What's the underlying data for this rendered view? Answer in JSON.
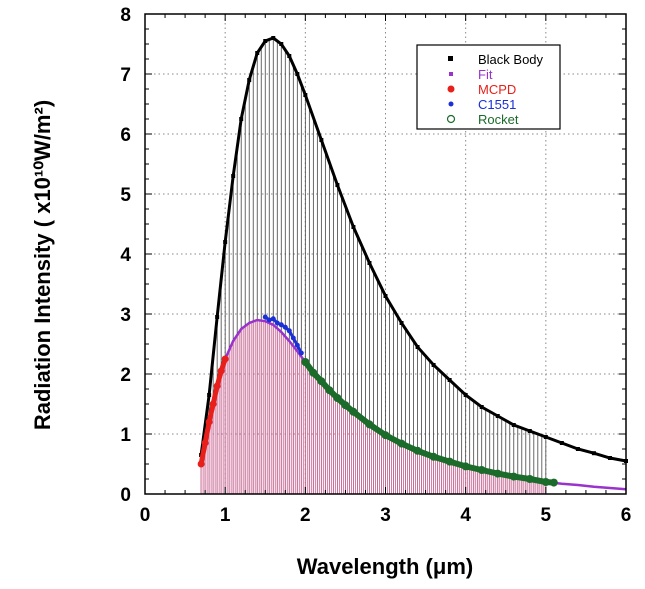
{
  "chart_data": {
    "type": "line",
    "title": "",
    "xlabel": "Wavelength (μm)",
    "ylabel": "Radiation Intensity ( x10¹⁰W/m²)",
    "xlim": [
      0,
      6
    ],
    "ylim": [
      0,
      8
    ],
    "x_ticks": [
      "0",
      "1",
      "2",
      "3",
      "4",
      "5",
      "6"
    ],
    "y_ticks": [
      "0",
      "1",
      "2",
      "3",
      "4",
      "5",
      "6",
      "7",
      "8"
    ],
    "grid": true,
    "legend_position": "top-right",
    "series": [
      {
        "name": "Black Body",
        "marker": "square",
        "color": "#000000",
        "x": [
          0.7,
          0.8,
          0.9,
          1.0,
          1.1,
          1.2,
          1.3,
          1.4,
          1.5,
          1.6,
          1.7,
          1.8,
          1.9,
          2.0,
          2.2,
          2.4,
          2.6,
          2.8,
          3.0,
          3.2,
          3.4,
          3.6,
          3.8,
          4.0,
          4.2,
          4.4,
          4.6,
          4.8,
          5.0,
          5.2,
          5.4,
          5.6,
          5.8,
          6.0
        ],
        "y": [
          0.65,
          1.65,
          2.95,
          4.2,
          5.3,
          6.25,
          6.9,
          7.35,
          7.55,
          7.6,
          7.5,
          7.3,
          7.0,
          6.65,
          5.9,
          5.15,
          4.45,
          3.85,
          3.3,
          2.85,
          2.45,
          2.15,
          1.9,
          1.65,
          1.45,
          1.3,
          1.15,
          1.05,
          0.95,
          0.85,
          0.75,
          0.68,
          0.6,
          0.55
        ]
      },
      {
        "name": "Fit",
        "marker": "line",
        "color": "#9933cc",
        "x": [
          0.7,
          0.8,
          0.9,
          1.0,
          1.1,
          1.2,
          1.3,
          1.4,
          1.5,
          1.6,
          1.7,
          1.8,
          1.9,
          2.0,
          2.2,
          2.4,
          2.6,
          2.8,
          3.0,
          3.2,
          3.4,
          3.6,
          3.8,
          4.0,
          4.2,
          4.4,
          4.6,
          4.8,
          5.0,
          5.2,
          5.4,
          5.6,
          5.8,
          6.0
        ],
        "y": [
          0.5,
          1.2,
          1.8,
          2.25,
          2.55,
          2.75,
          2.85,
          2.9,
          2.88,
          2.82,
          2.7,
          2.55,
          2.38,
          2.2,
          1.88,
          1.6,
          1.37,
          1.16,
          0.98,
          0.84,
          0.72,
          0.62,
          0.54,
          0.46,
          0.4,
          0.34,
          0.29,
          0.25,
          0.2,
          0.17,
          0.15,
          0.12,
          0.1,
          0.08
        ]
      },
      {
        "name": "MCPD",
        "marker": "circle",
        "color": "#e8201b",
        "x": [
          0.7,
          0.75,
          0.8,
          0.85,
          0.9,
          0.95,
          1.0
        ],
        "y": [
          0.5,
          0.85,
          1.2,
          1.5,
          1.8,
          2.05,
          2.25
        ]
      },
      {
        "name": "C1551",
        "marker": "circle",
        "color": "#1a2fd6",
        "x": [
          1.5,
          1.55,
          1.6,
          1.65,
          1.7,
          1.75,
          1.8,
          1.85,
          1.9,
          1.95
        ],
        "y": [
          2.95,
          2.9,
          2.92,
          2.85,
          2.82,
          2.78,
          2.72,
          2.6,
          2.48,
          2.35
        ]
      },
      {
        "name": "Rocket",
        "marker": "open-circle",
        "color": "#1b6b2a",
        "x": [
          2.0,
          2.1,
          2.2,
          2.3,
          2.4,
          2.5,
          2.6,
          2.8,
          3.0,
          3.2,
          3.4,
          3.6,
          3.8,
          4.0,
          4.2,
          4.4,
          4.6,
          4.8,
          5.0,
          5.1
        ],
        "y": [
          2.2,
          2.02,
          1.88,
          1.73,
          1.6,
          1.48,
          1.37,
          1.16,
          0.98,
          0.84,
          0.72,
          0.62,
          0.54,
          0.46,
          0.4,
          0.34,
          0.29,
          0.25,
          0.2,
          0.19
        ]
      }
    ]
  }
}
